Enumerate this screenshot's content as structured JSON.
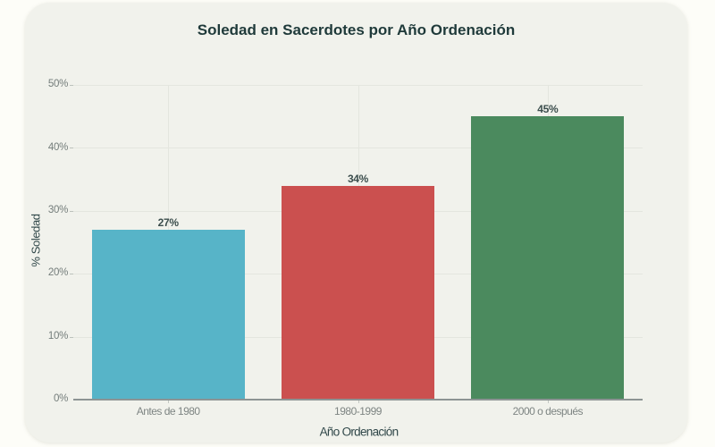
{
  "theme": {
    "page_background": "#fdfdf8",
    "card_background": "#f1f2ec",
    "title_color": "#1f3a3a",
    "gridline_color": "#e4e6df",
    "axis_line_color": "#8d9494",
    "tick_label_color": "#747d7b",
    "category_label_color": "#7e8583",
    "axis_title_color": "#31484a",
    "value_label_color": "#3c4e4d"
  },
  "chart_data": {
    "type": "bar",
    "title": "Soledad en Sacerdotes por Año Ordenación",
    "xlabel": "Año Ordenación",
    "ylabel": "% Soledad",
    "categories": [
      "Antes de 1980",
      "1980-1999",
      "2000 o después"
    ],
    "values": [
      27,
      34,
      45
    ],
    "value_labels": [
      "27%",
      "34%",
      "45%"
    ],
    "bar_colors": [
      "#57b4c8",
      "#cb504f",
      "#4b8a5e"
    ],
    "ylim": [
      0,
      50
    ],
    "yticks": [
      0,
      10,
      20,
      30,
      40,
      50
    ],
    "ytick_labels": [
      "0%",
      "10%",
      "20%",
      "30%",
      "40%",
      "50%"
    ],
    "grid": "on",
    "legend": "none"
  }
}
